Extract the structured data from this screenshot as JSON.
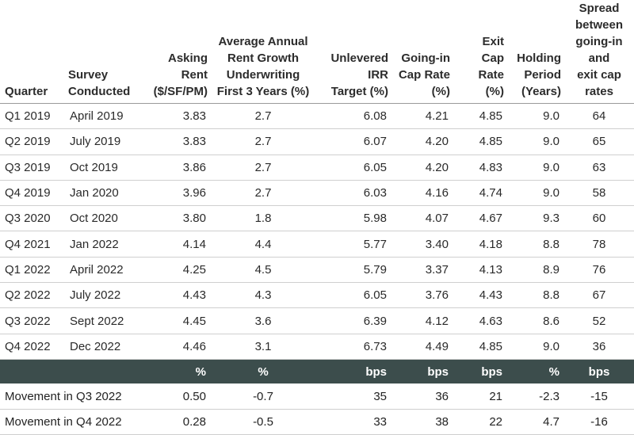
{
  "columns": [
    {
      "label": "Quarter",
      "align": "left"
    },
    {
      "label": "Survey\nConducted",
      "align": "left"
    },
    {
      "label": "Asking\nRent\n($/SF/PM)",
      "align": "right"
    },
    {
      "label": "Average Annual\nRent Growth\nUnderwriting\nFirst 3 Years (%)",
      "align": "center"
    },
    {
      "label": "Unlevered\nIRR\nTarget (%)",
      "align": "right"
    },
    {
      "label": "Going-in\nCap Rate\n(%)",
      "align": "right"
    },
    {
      "label": "Exit\nCap Rate\n(%)",
      "align": "right"
    },
    {
      "label": "Holding\nPeriod\n(Years)",
      "align": "right"
    },
    {
      "label": "Spread\nbetween\ngoing-in and\nexit cap rates",
      "align": "center"
    }
  ],
  "rows": [
    [
      "Q1 2019",
      "April 2019",
      "3.83",
      "2.7",
      "6.08",
      "4.21",
      "4.85",
      "9.0",
      "64"
    ],
    [
      "Q2 2019",
      "July 2019",
      "3.83",
      "2.7",
      "6.07",
      "4.20",
      "4.85",
      "9.0",
      "65"
    ],
    [
      "Q3 2019",
      "Oct 2019",
      "3.86",
      "2.7",
      "6.05",
      "4.20",
      "4.83",
      "9.0",
      "63"
    ],
    [
      "Q4 2019",
      "Jan 2020",
      "3.96",
      "2.7",
      "6.03",
      "4.16",
      "4.74",
      "9.0",
      "58"
    ],
    [
      "Q3 2020",
      "Oct 2020",
      "3.80",
      "1.8",
      "5.98",
      "4.07",
      "4.67",
      "9.3",
      "60"
    ],
    [
      "Q4 2021",
      "Jan 2022",
      "4.14",
      "4.4",
      "5.77",
      "3.40",
      "4.18",
      "8.8",
      "78"
    ],
    [
      "Q1 2022",
      "April 2022",
      "4.25",
      "4.5",
      "5.79",
      "3.37",
      "4.13",
      "8.9",
      "76"
    ],
    [
      "Q2 2022",
      "July 2022",
      "4.43",
      "4.3",
      "6.05",
      "3.76",
      "4.43",
      "8.8",
      "67"
    ],
    [
      "Q3 2022",
      "Sept 2022",
      "4.45",
      "3.6",
      "6.39",
      "4.12",
      "4.63",
      "8.6",
      "52"
    ],
    [
      "Q4 2022",
      "Dec 2022",
      "4.46",
      "3.1",
      "6.73",
      "4.49",
      "4.85",
      "9.0",
      "36"
    ]
  ],
  "units_row": [
    "",
    "",
    "%",
    "%",
    "bps",
    "bps",
    "bps",
    "%",
    "bps"
  ],
  "movement_rows": [
    {
      "label": "Movement in Q3 2022",
      "values": [
        "0.50",
        "-0.7",
        "35",
        "36",
        "21",
        "-2.3",
        "-15"
      ]
    },
    {
      "label": "Movement in Q4 2022",
      "values": [
        "0.28",
        "-0.5",
        "33",
        "38",
        "22",
        "4.7",
        "-16"
      ]
    }
  ],
  "colors": {
    "units_band": "#3c4d4c",
    "rule": "#cfcfcf"
  }
}
